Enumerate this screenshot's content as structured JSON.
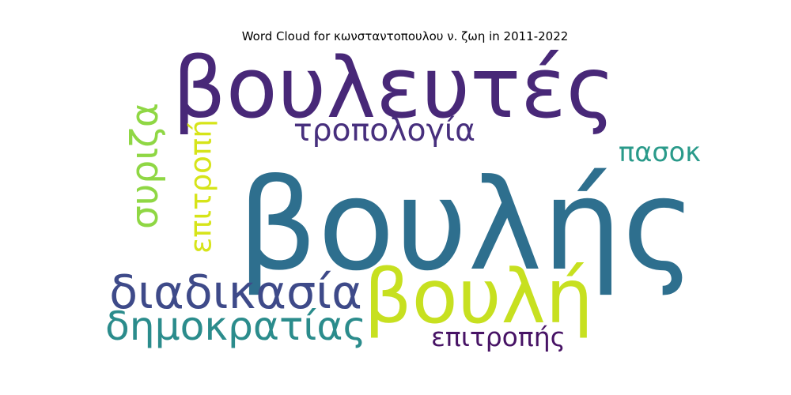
{
  "chart_data": {
    "type": "wordcloud",
    "title": "Word Cloud for κωνσταντοπουλου ν. ζωη in 2011-2022",
    "words": [
      {
        "text": "βουλής",
        "weight": 1.0,
        "color": "#2e6f8e",
        "orientation": "horizontal"
      },
      {
        "text": "βουλευτές",
        "weight": 0.72,
        "color": "#482878",
        "orientation": "horizontal"
      },
      {
        "text": "βουλή",
        "weight": 0.58,
        "color": "#c7e020",
        "orientation": "horizontal"
      },
      {
        "text": "διαδικασία",
        "weight": 0.36,
        "color": "#3e4a89",
        "orientation": "horizontal"
      },
      {
        "text": "δημοκρατίας",
        "weight": 0.34,
        "color": "#2b8c8c",
        "orientation": "horizontal"
      },
      {
        "text": "συριζα",
        "weight": 0.3,
        "color": "#8fd744",
        "orientation": "vertical"
      },
      {
        "text": "τροπολογία",
        "weight": 0.27,
        "color": "#472f7d",
        "orientation": "horizontal"
      },
      {
        "text": "επιτροπή",
        "weight": 0.25,
        "color": "#d6e419",
        "orientation": "vertical"
      },
      {
        "text": "πασοκ",
        "weight": 0.22,
        "color": "#2a9a8a",
        "orientation": "horizontal"
      },
      {
        "text": "επιτροπής",
        "weight": 0.22,
        "color": "#471365",
        "orientation": "horizontal"
      }
    ]
  }
}
